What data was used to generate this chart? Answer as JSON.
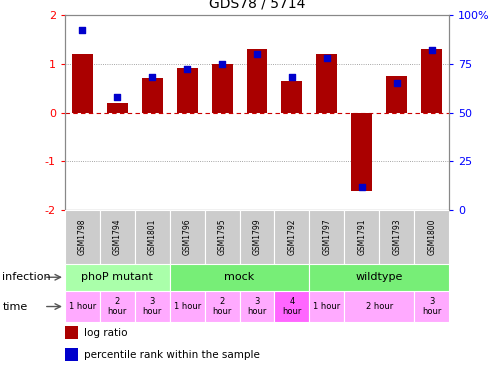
{
  "title": "GDS78 / 5714",
  "samples": [
    "GSM1798",
    "GSM1794",
    "GSM1801",
    "GSM1796",
    "GSM1795",
    "GSM1799",
    "GSM1792",
    "GSM1797",
    "GSM1791",
    "GSM1793",
    "GSM1800"
  ],
  "log_ratio": [
    1.2,
    0.2,
    0.7,
    0.9,
    1.0,
    1.3,
    0.65,
    1.2,
    -1.6,
    0.75,
    1.3
  ],
  "percentile": [
    92,
    58,
    68,
    72,
    75,
    80,
    68,
    78,
    12,
    65,
    82
  ],
  "ylim": [
    -2,
    2
  ],
  "y_left_ticks": [
    -2,
    -1,
    0,
    1,
    2
  ],
  "y_right_tick_labels": [
    "0",
    "25",
    "50",
    "75",
    "100%"
  ],
  "infection_groups": [
    {
      "label": "phoP mutant",
      "start": 0,
      "end": 3,
      "color": "#AAFFAA"
    },
    {
      "label": "mock",
      "start": 3,
      "end": 7,
      "color": "#77EE77"
    },
    {
      "label": "wildtype",
      "start": 7,
      "end": 11,
      "color": "#77EE77"
    }
  ],
  "time_spans": [
    {
      "label": "1 hour",
      "start": 0,
      "end": 1,
      "color": "#FFAAFF"
    },
    {
      "label": "2\nhour",
      "start": 1,
      "end": 2,
      "color": "#FFAAFF"
    },
    {
      "label": "3\nhour",
      "start": 2,
      "end": 3,
      "color": "#FFAAFF"
    },
    {
      "label": "1 hour",
      "start": 3,
      "end": 4,
      "color": "#FFAAFF"
    },
    {
      "label": "2\nhour",
      "start": 4,
      "end": 5,
      "color": "#FFAAFF"
    },
    {
      "label": "3\nhour",
      "start": 5,
      "end": 6,
      "color": "#FFAAFF"
    },
    {
      "label": "4\nhour",
      "start": 6,
      "end": 7,
      "color": "#FF66FF"
    },
    {
      "label": "1 hour",
      "start": 7,
      "end": 8,
      "color": "#FFAAFF"
    },
    {
      "label": "2 hour",
      "start": 8,
      "end": 10,
      "color": "#FFAAFF"
    },
    {
      "label": "3\nhour",
      "start": 10,
      "end": 11,
      "color": "#FFAAFF"
    }
  ],
  "bar_color": "#AA0000",
  "dot_color": "#0000CC",
  "dotted_line_color": "#888888",
  "zero_line_color": "#CC0000",
  "sample_box_color": "#CCCCCC",
  "background_color": "#FFFFFF"
}
